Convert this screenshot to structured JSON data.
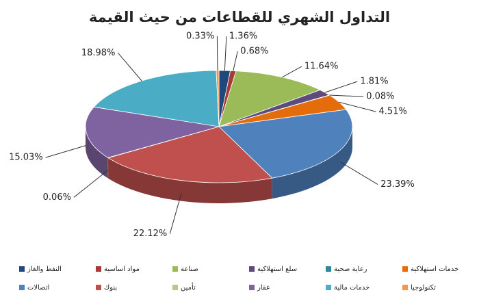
{
  "chart_data": {
    "type": "pie3d",
    "title": "التداول الشهري للقطاعات من حيث القيمة",
    "categories": [
      "النفط والغاز",
      "مواد اساسية",
      "صناعة",
      "سلع استهلاكية",
      "رعاية صحية",
      "خدمات استهلاكية",
      "اتصالات",
      "بنوك",
      "تأمين",
      "عقار",
      "خدمات مالية",
      "تكنولوجيا"
    ],
    "values": [
      1.36,
      0.68,
      11.64,
      1.81,
      0.08,
      4.51,
      23.39,
      22.12,
      0.06,
      15.03,
      18.98,
      0.33
    ],
    "value_labels": [
      "1.36%",
      "0.68%",
      "11.64%",
      "1.81%",
      "0.08%",
      "4.51%",
      "23.39%",
      "22.12%",
      "0.06%",
      "15.03%",
      "18.98%",
      "0.33%"
    ],
    "colors": [
      "#1f497d",
      "#a83a36",
      "#9bbb59",
      "#5f4a80",
      "#31859c",
      "#e46c0a",
      "#4f81bd",
      "#c0504d",
      "#b3cc84",
      "#7f62a0",
      "#4bacc6",
      "#f79646"
    ]
  }
}
